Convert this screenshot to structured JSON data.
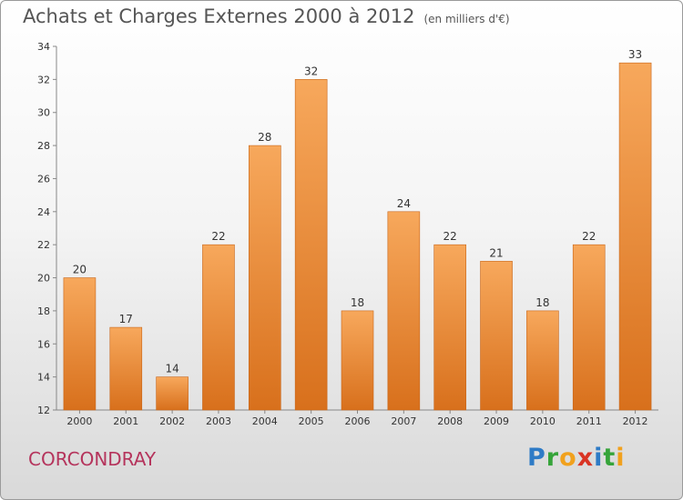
{
  "page": {
    "title": "Achats et Charges Externes 2000 à 2012",
    "subtitle": "(en milliers d'€)",
    "commune": "CORCONDRAY",
    "logo": {
      "letters": [
        {
          "ch": "P",
          "color": "#2e7bc6"
        },
        {
          "ch": "r",
          "color": "#36a43a"
        },
        {
          "ch": "o",
          "color": "#f1a11d"
        },
        {
          "ch": "x",
          "color": "#d93424"
        },
        {
          "ch": "i",
          "color": "#2e7bc6"
        },
        {
          "ch": "t",
          "color": "#36a43a"
        },
        {
          "ch": "i",
          "color": "#f1a11d"
        }
      ]
    }
  },
  "chart_data": {
    "type": "bar",
    "title": "Achats et Charges Externes 2000 à 2012",
    "subtitle": "(en milliers d'€)",
    "categories": [
      "2000",
      "2001",
      "2002",
      "2003",
      "2004",
      "2005",
      "2006",
      "2007",
      "2008",
      "2009",
      "2010",
      "2011",
      "2012"
    ],
    "values": [
      20,
      17,
      14,
      22,
      28,
      32,
      18,
      24,
      22,
      21,
      18,
      22,
      33
    ],
    "ylim": [
      12,
      34
    ],
    "yticks": [
      12,
      14,
      16,
      18,
      20,
      22,
      24,
      26,
      28,
      30,
      32,
      34
    ],
    "grid": false,
    "bar_color_top": "#f7a85c",
    "bar_color_bottom": "#d8701c"
  }
}
